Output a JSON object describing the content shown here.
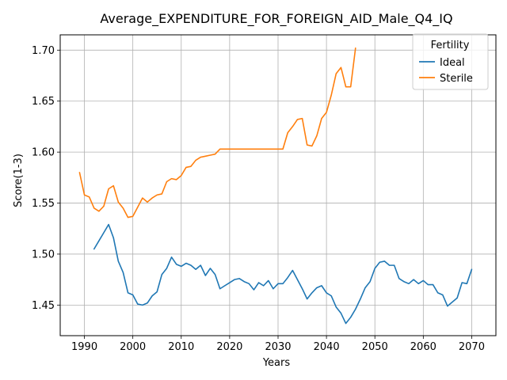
{
  "chart_data": {
    "type": "line",
    "title": "Average_EXPENDITURE_FOR_FOREIGN_AID_Male_Q4_IQ",
    "xlabel": "Years",
    "ylabel": "Score(1-3)",
    "xlim": [
      1985,
      2075
    ],
    "ylim": [
      1.42,
      1.715
    ],
    "xticks": [
      1990,
      2000,
      2010,
      2020,
      2030,
      2040,
      2050,
      2060,
      2070
    ],
    "yticks": [
      1.45,
      1.5,
      1.55,
      1.6,
      1.65,
      1.7
    ],
    "ytick_labels": [
      "1.45",
      "1.50",
      "1.55",
      "1.60",
      "1.65",
      "1.70"
    ],
    "grid": true,
    "legend": {
      "title": "Fertility",
      "position": "top-right"
    },
    "series": [
      {
        "name": "Ideal",
        "color": "#1f77b4",
        "x": [
          1992,
          1993,
          1994,
          1995,
          1996,
          1997,
          1998,
          1999,
          2000,
          2001,
          2002,
          2003,
          2004,
          2005,
          2006,
          2007,
          2008,
          2009,
          2010,
          2011,
          2012,
          2013,
          2014,
          2015,
          2016,
          2017,
          2018,
          2019,
          2020,
          2021,
          2022,
          2023,
          2024,
          2025,
          2026,
          2027,
          2028,
          2029,
          2030,
          2031,
          2032,
          2033,
          2034,
          2035,
          2036,
          2037,
          2038,
          2039,
          2040,
          2041,
          2042,
          2043,
          2044,
          2045,
          2046,
          2047,
          2048,
          2049,
          2050,
          2051,
          2052,
          2053,
          2054,
          2055,
          2056,
          2057,
          2058,
          2059,
          2060,
          2061,
          2062,
          2063,
          2064,
          2065,
          2066,
          2067,
          2068,
          2069,
          2070
        ],
        "y": [
          1.505,
          1.513,
          1.521,
          1.529,
          1.516,
          1.493,
          1.482,
          1.462,
          1.46,
          1.451,
          1.45,
          1.452,
          1.459,
          1.463,
          1.48,
          1.486,
          1.497,
          1.49,
          1.488,
          1.491,
          1.489,
          1.485,
          1.489,
          1.479,
          1.486,
          1.48,
          1.466,
          1.469,
          1.472,
          1.475,
          1.476,
          1.473,
          1.471,
          1.465,
          1.472,
          1.469,
          1.474,
          1.466,
          1.471,
          1.471,
          1.477,
          1.484,
          1.475,
          1.466,
          1.456,
          1.462,
          1.467,
          1.469,
          1.462,
          1.459,
          1.448,
          1.442,
          1.432,
          1.438,
          1.446,
          1.456,
          1.467,
          1.473,
          1.486,
          1.492,
          1.493,
          1.489,
          1.489,
          1.476,
          1.473,
          1.471,
          1.475,
          1.471,
          1.474,
          1.47,
          1.47,
          1.462,
          1.46,
          1.449,
          1.453,
          1.457,
          1.472,
          1.471,
          1.485
        ]
      },
      {
        "name": "Sterile",
        "color": "#ff7f0e",
        "x": [
          1989,
          1990,
          1991,
          1992,
          1993,
          1994,
          1995,
          1996,
          1997,
          1998,
          1999,
          2000,
          2001,
          2002,
          2003,
          2004,
          2005,
          2006,
          2007,
          2008,
          2009,
          2010,
          2011,
          2012,
          2013,
          2014,
          2015,
          2016,
          2017,
          2018,
          2019,
          2020,
          2021,
          2022,
          2023,
          2024,
          2025,
          2026,
          2027,
          2028,
          2029,
          2030,
          2031,
          2032,
          2033,
          2034,
          2035,
          2036,
          2037,
          2038,
          2039,
          2040,
          2041,
          2042,
          2043,
          2044,
          2045,
          2046
        ],
        "y": [
          1.58,
          1.558,
          1.556,
          1.545,
          1.542,
          1.547,
          1.564,
          1.567,
          1.551,
          1.545,
          1.536,
          1.537,
          1.546,
          1.555,
          1.551,
          1.555,
          1.558,
          1.559,
          1.571,
          1.574,
          1.573,
          1.577,
          1.585,
          1.586,
          1.592,
          1.595,
          1.596,
          1.597,
          1.598,
          1.603,
          1.603,
          1.603,
          1.603,
          1.603,
          1.603,
          1.603,
          1.603,
          1.603,
          1.603,
          1.603,
          1.603,
          1.603,
          1.603,
          1.619,
          1.625,
          1.632,
          1.633,
          1.607,
          1.606,
          1.616,
          1.633,
          1.639,
          1.656,
          1.677,
          1.683,
          1.664,
          1.664,
          1.702
        ]
      }
    ]
  }
}
